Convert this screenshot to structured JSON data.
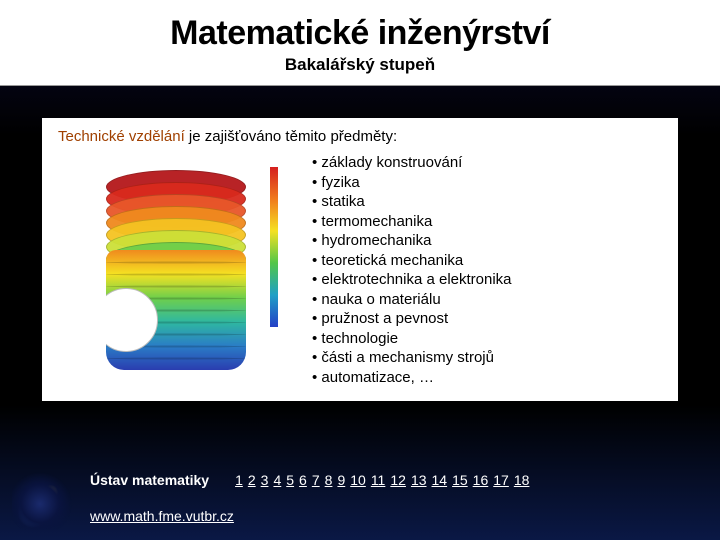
{
  "title": "Matematické inženýrství",
  "subtitle": "Bakalářský stupeň",
  "intro_hl": "Technické vzdělání",
  "intro_rest": " je zajišťováno těmito předměty:",
  "bullets": [
    "základy konstruování",
    "fyzika",
    "statika",
    "termomechanika",
    "hydromechanika",
    "teoretická mechanika",
    "elektrotechnika a elektronika",
    "nauka o materiálu",
    "pružnost a pevnost",
    "technologie",
    "části a mechanismy strojů",
    "automatizace, …"
  ],
  "figure": {
    "type": "fem-contour",
    "layer_colors": [
      "#b5181b",
      "#d92a1d",
      "#e8572a",
      "#f08a1e",
      "#f5c322",
      "#cce038",
      "#6fcf4b",
      "#2fb8a0",
      "#2a7dc6",
      "#2d52c0",
      "#2a3db0"
    ],
    "cut_gradient": [
      "#f08a1e",
      "#f5e122",
      "#6fcf4b",
      "#2fb8a0",
      "#2a7dc6",
      "#2a3db0"
    ],
    "scale_colors": [
      "#d51f1f",
      "#f07a1e",
      "#f5e122",
      "#52c648",
      "#1fa0c6",
      "#243fc6"
    ]
  },
  "footer": {
    "institute": "Ústav matematiky",
    "url": "www.math.fme.vutbr.cz",
    "pages": [
      "1",
      "2",
      "3",
      "4",
      "5",
      "6",
      "7",
      "8",
      "9",
      "10",
      "11",
      "12",
      "13",
      "14",
      "15",
      "16",
      "17",
      "18"
    ]
  }
}
